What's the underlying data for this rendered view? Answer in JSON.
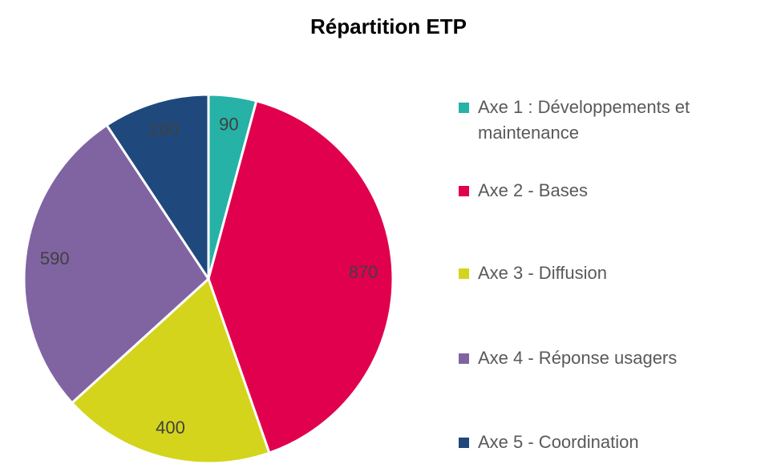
{
  "chart_data": {
    "type": "pie",
    "title": "Répartition ETP",
    "categories": [
      "Axe 1 : Développements et maintenance",
      "Axe 2 - Bases",
      "Axe 3 - Diffusion",
      "Axe 4 - Réponse usagers",
      "Axe 5 - Coordination"
    ],
    "values": [
      90,
      870,
      400,
      590,
      200
    ],
    "colors": [
      "#26b2a6",
      "#e0004d",
      "#d4d41c",
      "#8064a2",
      "#1f497d"
    ],
    "legend": "right"
  }
}
